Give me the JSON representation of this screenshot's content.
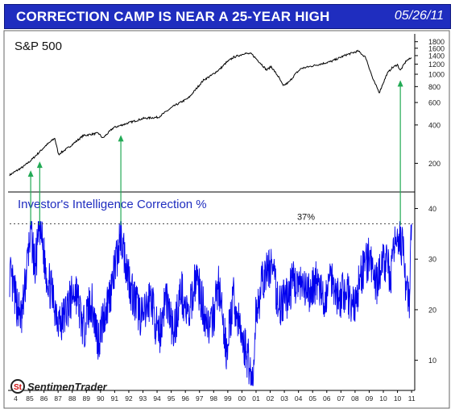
{
  "header": {
    "title": "CORRECTION CAMP IS NEAR A 25-YEAR HIGH",
    "date": "05/26/11"
  },
  "brand": {
    "logo_text": "SentimenTrader"
  },
  "colors": {
    "header_bg": "#1f2dbf",
    "line_top": "#000000",
    "line_bottom": "#0000ee",
    "arrow": "#22aa55",
    "logo_red": "#d01010"
  },
  "chart_data": [
    {
      "type": "line",
      "title": "S&P 500",
      "log_scale": true,
      "x_range": [
        1984.6,
        2011.45
      ],
      "ylim": [
        130,
        1900
      ],
      "y_ticks": [
        200,
        400,
        600,
        800,
        1000,
        1200,
        1400,
        1600,
        1800
      ],
      "y_tick_labels": [
        "200",
        "400",
        "600",
        "800",
        "1000",
        "1200",
        "1400",
        "1600",
        "1800"
      ],
      "series": [
        {
          "x": [
            1984.6,
            1985.5,
            1986.0,
            1986.5,
            1987.0,
            1987.6,
            1987.85,
            1988.5,
            1989.5,
            1990.5,
            1990.8,
            1991.5,
            1992.5,
            1993.5,
            1994.5,
            1995.5,
            1996.5,
            1997.5,
            1998.0,
            1998.6,
            1999.0,
            1999.5,
            2000.0,
            2000.2,
            2000.7,
            2001.3,
            2001.7,
            2002.0,
            2002.5,
            2002.8,
            2003.2,
            2003.6,
            2004.0,
            2005.0,
            2006.0,
            2007.0,
            2007.8,
            2008.3,
            2008.8,
            2009.2,
            2009.7,
            2010.0,
            2010.4,
            2010.6,
            2011.0,
            2011.35
          ],
          "y": [
            162,
            188,
            210,
            240,
            275,
            315,
            235,
            265,
            330,
            345,
            315,
            380,
            415,
            450,
            460,
            560,
            650,
            900,
            975,
            1100,
            1230,
            1360,
            1420,
            1460,
            1440,
            1220,
            1080,
            1150,
            950,
            810,
            870,
            1000,
            1110,
            1180,
            1260,
            1420,
            1520,
            1350,
            900,
            720,
            1000,
            1110,
            1190,
            1070,
            1280,
            1340
          ]
        }
      ],
      "annotations": [
        1986.0,
        1986.6,
        1992.0,
        2010.6
      ]
    },
    {
      "type": "line",
      "title": "Investor's Intelligence Correction %",
      "x_range": [
        1984.6,
        2011.45
      ],
      "ylim": [
        5,
        42
      ],
      "y_ticks": [
        10,
        20,
        30,
        40
      ],
      "y_tick_labels": [
        "10",
        "20",
        "30",
        "40"
      ],
      "threshold": {
        "value": 37,
        "label": "37%"
      },
      "x_tick_labels": [
        "4",
        "85",
        "86",
        "87",
        "88",
        "89",
        "90",
        "91",
        "92",
        "93",
        "94",
        "95",
        "96",
        "97",
        "98",
        "99",
        "00",
        "01",
        "02",
        "03",
        "04",
        "05",
        "06",
        "07",
        "08",
        "09",
        "10",
        "10",
        "11"
      ],
      "series": [
        {
          "x": [
            1984.6,
            1985.0,
            1985.4,
            1985.8,
            1986.0,
            1986.3,
            1986.6,
            1987.0,
            1987.5,
            1988.0,
            1988.5,
            1989.0,
            1989.5,
            1990.0,
            1990.5,
            1991.0,
            1991.5,
            1992.0,
            1992.3,
            1992.7,
            1993.0,
            1993.5,
            1994.0,
            1994.5,
            1995.0,
            1995.5,
            1996.0,
            1996.5,
            1997.0,
            1997.5,
            1998.0,
            1998.5,
            1999.0,
            1999.5,
            2000.0,
            2000.5,
            2000.8,
            2001.0,
            2001.5,
            2002.0,
            2002.5,
            2003.0,
            2003.5,
            2004.0,
            2004.5,
            2005.0,
            2005.5,
            2006.0,
            2006.5,
            2007.0,
            2007.5,
            2008.0,
            2008.5,
            2009.0,
            2009.5,
            2010.0,
            2010.4,
            2010.7,
            2011.0,
            2011.2,
            2011.35
          ],
          "y": [
            27,
            22,
            18,
            30,
            36,
            28,
            37,
            28,
            22,
            17,
            21,
            24,
            16,
            22,
            14,
            20,
            26,
            35,
            30,
            24,
            21,
            18,
            23,
            14,
            23,
            15,
            24,
            18,
            27,
            20,
            16,
            25,
            12,
            22,
            15,
            10,
            5,
            20,
            26,
            29,
            21,
            22,
            26,
            24,
            23,
            26,
            21,
            27,
            22,
            24,
            20,
            27,
            30,
            25,
            30,
            27,
            36,
            33,
            24,
            21,
            37
          ]
        }
      ]
    }
  ]
}
